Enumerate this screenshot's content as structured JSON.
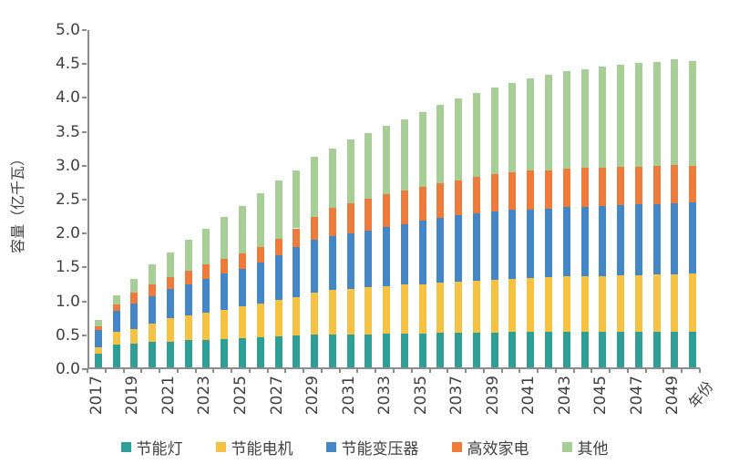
{
  "chart_data": {
    "type": "bar",
    "stacked": true,
    "title": "",
    "ylabel": "容量（亿千瓦）",
    "xlabel": "年份",
    "ylim": [
      0,
      5
    ],
    "ytick_step": 0.5,
    "grid": false,
    "legend_position": "bottom",
    "x_label_interval": 2,
    "categories": [
      2017,
      2018,
      2019,
      2020,
      2021,
      2022,
      2023,
      2024,
      2025,
      2026,
      2027,
      2028,
      2029,
      2030,
      2031,
      2032,
      2033,
      2034,
      2035,
      2036,
      2037,
      2038,
      2039,
      2040,
      2041,
      2042,
      2043,
      2044,
      2045,
      2046,
      2047,
      2048,
      2049,
      2050
    ],
    "series": [
      {
        "name": "节能灯",
        "color": "#2f9e96",
        "values": [
          0.2,
          0.33,
          0.35,
          0.37,
          0.38,
          0.4,
          0.41,
          0.42,
          0.43,
          0.45,
          0.46,
          0.47,
          0.48,
          0.48,
          0.49,
          0.49,
          0.5,
          0.5,
          0.5,
          0.51,
          0.51,
          0.51,
          0.51,
          0.52,
          0.52,
          0.52,
          0.52,
          0.52,
          0.52,
          0.52,
          0.52,
          0.52,
          0.52,
          0.52
        ]
      },
      {
        "name": "节能电机",
        "color": "#f5c243",
        "values": [
          0.1,
          0.19,
          0.22,
          0.28,
          0.34,
          0.36,
          0.39,
          0.43,
          0.47,
          0.49,
          0.53,
          0.57,
          0.62,
          0.66,
          0.67,
          0.69,
          0.7,
          0.72,
          0.73,
          0.74,
          0.75,
          0.77,
          0.78,
          0.79,
          0.8,
          0.81,
          0.82,
          0.83,
          0.83,
          0.84,
          0.84,
          0.85,
          0.85,
          0.86
        ]
      },
      {
        "name": "节能变压器",
        "color": "#4586c6",
        "values": [
          0.25,
          0.32,
          0.37,
          0.4,
          0.43,
          0.46,
          0.5,
          0.53,
          0.55,
          0.61,
          0.67,
          0.74,
          0.78,
          0.8,
          0.81,
          0.84,
          0.87,
          0.89,
          0.93,
          0.95,
          0.98,
          0.99,
          1.01,
          1.01,
          1.01,
          1.01,
          1.02,
          1.02,
          1.03,
          1.03,
          1.04,
          1.04,
          1.05,
          1.05
        ]
      },
      {
        "name": "高效家电",
        "color": "#ed7b3b",
        "values": [
          0.06,
          0.09,
          0.16,
          0.17,
          0.18,
          0.21,
          0.22,
          0.22,
          0.23,
          0.23,
          0.24,
          0.27,
          0.34,
          0.41,
          0.45,
          0.47,
          0.48,
          0.5,
          0.5,
          0.51,
          0.52,
          0.54,
          0.55,
          0.56,
          0.57,
          0.57,
          0.57,
          0.58,
          0.57,
          0.57,
          0.56,
          0.56,
          0.56,
          0.54
        ]
      },
      {
        "name": "其他",
        "color": "#a6ce96",
        "values": [
          0.09,
          0.13,
          0.21,
          0.3,
          0.37,
          0.45,
          0.53,
          0.62,
          0.7,
          0.79,
          0.85,
          0.86,
          0.88,
          0.88,
          0.94,
          0.97,
          1.01,
          1.05,
          1.11,
          1.16,
          1.21,
          1.24,
          1.28,
          1.32,
          1.36,
          1.41,
          1.44,
          1.45,
          1.48,
          1.5,
          1.53,
          1.53,
          1.57,
          1.55
        ]
      }
    ]
  },
  "style": {
    "axis_color": "#8c8c8c",
    "text_color": "#404040",
    "background": "#ffffff"
  }
}
